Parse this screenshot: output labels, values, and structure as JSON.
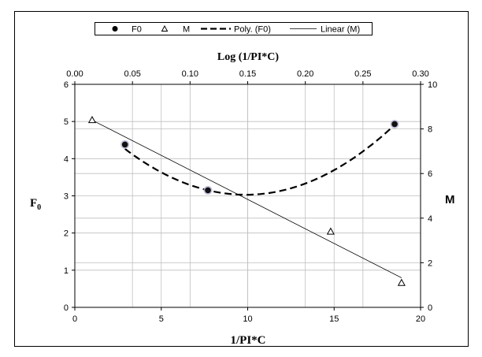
{
  "chart_data": {
    "type": "scatter",
    "axes": {
      "x_bottom": {
        "label": "1/PI*C",
        "range": [
          0,
          20
        ],
        "ticks": [
          0,
          5,
          10,
          15,
          20
        ],
        "tick_labels": [
          "0",
          "5",
          "10",
          "15",
          "20"
        ]
      },
      "x_top": {
        "label": "Log (1/PI*C)",
        "range": [
          0,
          0.3
        ],
        "ticks": [
          0,
          0.05,
          0.1,
          0.15,
          0.2,
          0.25,
          0.3
        ],
        "tick_labels": [
          "0.00",
          "0.05",
          "0.10",
          "0.15",
          "0.20",
          "0.25",
          "0.30"
        ]
      },
      "y_left": {
        "label": "F",
        "label_subscript": "0",
        "range": [
          0,
          6
        ],
        "ticks": [
          0,
          1,
          2,
          3,
          4,
          5,
          6
        ],
        "tick_labels": [
          "0",
          "1",
          "2",
          "3",
          "4",
          "5",
          "6"
        ]
      },
      "y_right": {
        "label": "M",
        "range": [
          0,
          10
        ],
        "ticks": [
          0,
          2,
          4,
          6,
          8,
          10
        ],
        "tick_labels": [
          "0",
          "2",
          "4",
          "6",
          "8",
          "10"
        ]
      }
    },
    "grid": true,
    "legend_position": "top",
    "series": [
      {
        "name": "F0",
        "kind": "scatter",
        "marker": "circle",
        "x_axis": "bottom",
        "y_axis": "left",
        "points": [
          [
            2.9,
            4.38
          ],
          [
            7.7,
            3.15
          ],
          [
            18.5,
            4.93
          ]
        ]
      },
      {
        "name": "M",
        "kind": "scatter",
        "marker": "triangle",
        "x_axis": "bottom",
        "y_axis": "right",
        "points": [
          [
            1.0,
            8.4
          ],
          [
            14.8,
            3.4
          ],
          [
            18.9,
            1.1
          ]
        ]
      },
      {
        "name": "Poly. (F0)",
        "kind": "trendline",
        "style": "dashed",
        "fit": "polynomial",
        "x_axis": "bottom",
        "y_axis": "left",
        "x_range": [
          2.9,
          18.5
        ],
        "coefficients": [
          5.5,
          -0.5,
          0.0253
        ]
      },
      {
        "name": "Linear (M)",
        "kind": "trendline",
        "style": "solid-thin",
        "fit": "linear",
        "x_axis": "bottom",
        "y_axis": "right",
        "x_range": [
          1.0,
          18.9
        ],
        "coefficients": [
          8.79,
          -0.395
        ]
      }
    ]
  }
}
